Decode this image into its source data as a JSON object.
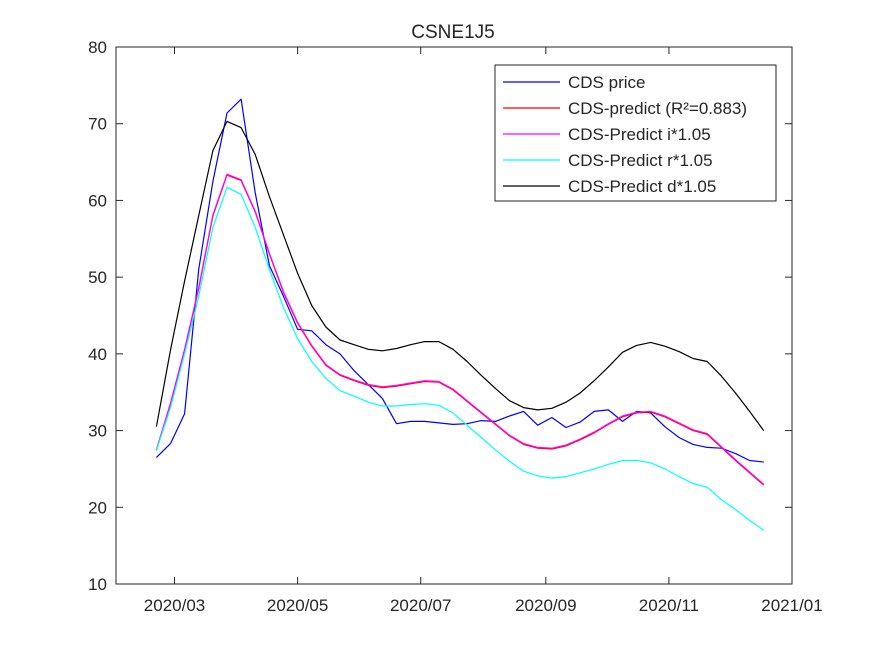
{
  "chart_data": {
    "type": "line",
    "title": "CSNE1J5",
    "xlabel": "",
    "ylabel": "",
    "x_ticks": [
      "2020/03",
      "2020/05",
      "2020/07",
      "2020/09",
      "2020/11",
      "2021/01"
    ],
    "y_ticks": [
      "10",
      "20",
      "30",
      "40",
      "50",
      "60",
      "70",
      "80"
    ],
    "xlim": [
      "2020-02-01",
      "2021-01-01"
    ],
    "ylim": [
      10,
      80
    ],
    "grid": false,
    "legend_position": "top-right",
    "series": [
      {
        "name": "CDS price",
        "color": "#0000ff",
        "points": [
          [
            "2020-02-21",
            26.5
          ],
          [
            "2020-02-28",
            28.3
          ],
          [
            "2020-03-06",
            32.2
          ],
          [
            "2020-03-13",
            51.0
          ],
          [
            "2020-03-20",
            62.5
          ],
          [
            "2020-03-27",
            71.4
          ],
          [
            "2020-04-03",
            73.2
          ],
          [
            "2020-04-10",
            61.0
          ],
          [
            "2020-04-17",
            51.5
          ],
          [
            "2020-04-24",
            47.5
          ],
          [
            "2020-05-01",
            43.2
          ],
          [
            "2020-05-08",
            43.0
          ],
          [
            "2020-05-15",
            41.2
          ],
          [
            "2020-05-22",
            40.0
          ],
          [
            "2020-05-29",
            37.8
          ],
          [
            "2020-06-05",
            36.0
          ],
          [
            "2020-06-12",
            34.2
          ],
          [
            "2020-06-19",
            30.9
          ],
          [
            "2020-06-26",
            31.2
          ],
          [
            "2020-07-03",
            31.2
          ],
          [
            "2020-07-10",
            31.0
          ],
          [
            "2020-07-17",
            30.8
          ],
          [
            "2020-07-24",
            30.9
          ],
          [
            "2020-07-31",
            31.3
          ],
          [
            "2020-08-07",
            31.2
          ],
          [
            "2020-08-14",
            31.9
          ],
          [
            "2020-08-21",
            32.5
          ],
          [
            "2020-08-28",
            30.7
          ],
          [
            "2020-09-04",
            31.7
          ],
          [
            "2020-09-11",
            30.4
          ],
          [
            "2020-09-18",
            31.1
          ],
          [
            "2020-09-25",
            32.5
          ],
          [
            "2020-10-02",
            32.7
          ],
          [
            "2020-10-09",
            31.2
          ],
          [
            "2020-10-16",
            32.5
          ],
          [
            "2020-10-23",
            32.3
          ],
          [
            "2020-10-30",
            30.5
          ],
          [
            "2020-11-06",
            29.1
          ],
          [
            "2020-11-13",
            28.2
          ],
          [
            "2020-11-20",
            27.8
          ],
          [
            "2020-11-27",
            27.7
          ],
          [
            "2020-12-04",
            27.0
          ],
          [
            "2020-12-11",
            26.1
          ],
          [
            "2020-12-18",
            25.9
          ]
        ]
      },
      {
        "name": "CDS-predict (R²=0.883)",
        "color": "#ff0000",
        "points": [
          [
            "2020-02-21",
            27.4
          ],
          [
            "2020-02-28",
            33.5
          ],
          [
            "2020-03-06",
            40.5
          ],
          [
            "2020-03-13",
            48.5
          ],
          [
            "2020-03-20",
            58.0
          ],
          [
            "2020-03-27",
            63.3
          ],
          [
            "2020-04-03",
            62.6
          ],
          [
            "2020-04-10",
            58.5
          ],
          [
            "2020-04-17",
            53.0
          ],
          [
            "2020-04-24",
            48.0
          ],
          [
            "2020-05-01",
            44.0
          ],
          [
            "2020-05-08",
            41.0
          ],
          [
            "2020-05-15",
            38.5
          ],
          [
            "2020-05-22",
            37.2
          ],
          [
            "2020-05-29",
            36.5
          ],
          [
            "2020-06-05",
            35.9
          ],
          [
            "2020-06-12",
            35.6
          ],
          [
            "2020-06-19",
            35.8
          ],
          [
            "2020-06-26",
            36.1
          ],
          [
            "2020-07-03",
            36.4
          ],
          [
            "2020-07-10",
            36.3
          ],
          [
            "2020-07-17",
            35.3
          ],
          [
            "2020-07-24",
            33.8
          ],
          [
            "2020-07-31",
            32.3
          ],
          [
            "2020-08-07",
            30.8
          ],
          [
            "2020-08-14",
            29.3
          ],
          [
            "2020-08-21",
            28.2
          ],
          [
            "2020-08-28",
            27.7
          ],
          [
            "2020-09-04",
            27.6
          ],
          [
            "2020-09-11",
            28.0
          ],
          [
            "2020-09-18",
            28.8
          ],
          [
            "2020-09-25",
            29.7
          ],
          [
            "2020-10-02",
            30.8
          ],
          [
            "2020-10-09",
            31.8
          ],
          [
            "2020-10-16",
            32.3
          ],
          [
            "2020-10-23",
            32.4
          ],
          [
            "2020-10-30",
            31.8
          ],
          [
            "2020-11-06",
            30.9
          ],
          [
            "2020-11-13",
            30.0
          ],
          [
            "2020-11-20",
            29.5
          ],
          [
            "2020-11-27",
            27.8
          ],
          [
            "2020-12-04",
            26.1
          ],
          [
            "2020-12-11",
            24.5
          ],
          [
            "2020-12-18",
            22.9
          ]
        ]
      },
      {
        "name": "CDS-Predict i*1.05",
        "color": "#ff00ff",
        "points": [
          [
            "2020-02-21",
            27.5
          ],
          [
            "2020-02-28",
            33.6
          ],
          [
            "2020-03-06",
            40.6
          ],
          [
            "2020-03-13",
            48.6
          ],
          [
            "2020-03-20",
            58.1
          ],
          [
            "2020-03-27",
            63.4
          ],
          [
            "2020-04-03",
            62.7
          ],
          [
            "2020-04-10",
            58.6
          ],
          [
            "2020-04-17",
            53.1
          ],
          [
            "2020-04-24",
            48.1
          ],
          [
            "2020-05-01",
            44.1
          ],
          [
            "2020-05-08",
            41.1
          ],
          [
            "2020-05-15",
            38.6
          ],
          [
            "2020-05-22",
            37.3
          ],
          [
            "2020-05-29",
            36.6
          ],
          [
            "2020-06-05",
            36.0
          ],
          [
            "2020-06-12",
            35.7
          ],
          [
            "2020-06-19",
            35.9
          ],
          [
            "2020-06-26",
            36.2
          ],
          [
            "2020-07-03",
            36.5
          ],
          [
            "2020-07-10",
            36.4
          ],
          [
            "2020-07-17",
            35.4
          ],
          [
            "2020-07-24",
            33.9
          ],
          [
            "2020-07-31",
            32.4
          ],
          [
            "2020-08-07",
            30.9
          ],
          [
            "2020-08-14",
            29.4
          ],
          [
            "2020-08-21",
            28.3
          ],
          [
            "2020-08-28",
            27.8
          ],
          [
            "2020-09-04",
            27.7
          ],
          [
            "2020-09-11",
            28.1
          ],
          [
            "2020-09-18",
            28.9
          ],
          [
            "2020-09-25",
            29.8
          ],
          [
            "2020-10-02",
            30.9
          ],
          [
            "2020-10-09",
            31.9
          ],
          [
            "2020-10-16",
            32.4
          ],
          [
            "2020-10-23",
            32.5
          ],
          [
            "2020-10-30",
            31.9
          ],
          [
            "2020-11-06",
            31.0
          ],
          [
            "2020-11-13",
            30.1
          ],
          [
            "2020-11-20",
            29.6
          ],
          [
            "2020-11-27",
            27.9
          ],
          [
            "2020-12-04",
            26.2
          ],
          [
            "2020-12-11",
            24.6
          ],
          [
            "2020-12-18",
            23.0
          ]
        ]
      },
      {
        "name": "CDS-Predict r*1.05",
        "color": "#00ffff",
        "points": [
          [
            "2020-02-21",
            27.4
          ],
          [
            "2020-02-28",
            33.0
          ],
          [
            "2020-03-06",
            40.0
          ],
          [
            "2020-03-13",
            47.5
          ],
          [
            "2020-03-20",
            56.5
          ],
          [
            "2020-03-27",
            61.7
          ],
          [
            "2020-04-03",
            60.8
          ],
          [
            "2020-04-10",
            56.5
          ],
          [
            "2020-04-17",
            51.0
          ],
          [
            "2020-04-24",
            46.0
          ],
          [
            "2020-05-01",
            42.0
          ],
          [
            "2020-05-08",
            39.0
          ],
          [
            "2020-05-15",
            36.8
          ],
          [
            "2020-05-22",
            35.2
          ],
          [
            "2020-05-29",
            34.5
          ],
          [
            "2020-06-05",
            33.7
          ],
          [
            "2020-06-12",
            33.2
          ],
          [
            "2020-06-19",
            33.2
          ],
          [
            "2020-06-26",
            33.4
          ],
          [
            "2020-07-03",
            33.5
          ],
          [
            "2020-07-10",
            33.3
          ],
          [
            "2020-07-17",
            32.3
          ],
          [
            "2020-07-24",
            30.7
          ],
          [
            "2020-07-31",
            29.1
          ],
          [
            "2020-08-07",
            27.5
          ],
          [
            "2020-08-14",
            26.0
          ],
          [
            "2020-08-21",
            24.7
          ],
          [
            "2020-08-28",
            24.1
          ],
          [
            "2020-09-04",
            23.8
          ],
          [
            "2020-09-11",
            24.0
          ],
          [
            "2020-09-18",
            24.5
          ],
          [
            "2020-09-25",
            25.0
          ],
          [
            "2020-10-02",
            25.6
          ],
          [
            "2020-10-09",
            26.1
          ],
          [
            "2020-10-16",
            26.1
          ],
          [
            "2020-10-23",
            25.8
          ],
          [
            "2020-10-30",
            25.0
          ],
          [
            "2020-11-06",
            24.0
          ],
          [
            "2020-11-13",
            23.1
          ],
          [
            "2020-11-20",
            22.6
          ],
          [
            "2020-11-27",
            21.0
          ],
          [
            "2020-12-04",
            19.7
          ],
          [
            "2020-12-11",
            18.3
          ],
          [
            "2020-12-18",
            17.0
          ]
        ]
      },
      {
        "name": "CDS-Predict d*1.05",
        "color": "#000000",
        "points": [
          [
            "2020-02-21",
            30.5
          ],
          [
            "2020-02-28",
            40.5
          ],
          [
            "2020-03-06",
            49.5
          ],
          [
            "2020-03-13",
            58.0
          ],
          [
            "2020-03-20",
            66.5
          ],
          [
            "2020-03-27",
            70.3
          ],
          [
            "2020-04-03",
            69.5
          ],
          [
            "2020-04-10",
            66.0
          ],
          [
            "2020-04-17",
            60.5
          ],
          [
            "2020-04-24",
            55.5
          ],
          [
            "2020-05-01",
            50.5
          ],
          [
            "2020-05-08",
            46.3
          ],
          [
            "2020-05-15",
            43.5
          ],
          [
            "2020-05-22",
            41.8
          ],
          [
            "2020-05-29",
            41.2
          ],
          [
            "2020-06-05",
            40.6
          ],
          [
            "2020-06-12",
            40.4
          ],
          [
            "2020-06-19",
            40.7
          ],
          [
            "2020-06-26",
            41.2
          ],
          [
            "2020-07-03",
            41.6
          ],
          [
            "2020-07-10",
            41.6
          ],
          [
            "2020-07-17",
            40.6
          ],
          [
            "2020-07-24",
            39.0
          ],
          [
            "2020-07-31",
            37.2
          ],
          [
            "2020-08-07",
            35.5
          ],
          [
            "2020-08-14",
            33.9
          ],
          [
            "2020-08-21",
            33.0
          ],
          [
            "2020-08-28",
            32.7
          ],
          [
            "2020-09-04",
            32.9
          ],
          [
            "2020-09-11",
            33.7
          ],
          [
            "2020-09-18",
            34.9
          ],
          [
            "2020-09-25",
            36.5
          ],
          [
            "2020-10-02",
            38.3
          ],
          [
            "2020-10-09",
            40.2
          ],
          [
            "2020-10-16",
            41.1
          ],
          [
            "2020-10-23",
            41.5
          ],
          [
            "2020-10-30",
            41.0
          ],
          [
            "2020-11-06",
            40.3
          ],
          [
            "2020-11-13",
            39.4
          ],
          [
            "2020-11-20",
            39.0
          ],
          [
            "2020-11-27",
            37.1
          ],
          [
            "2020-12-04",
            34.9
          ],
          [
            "2020-12-11",
            32.5
          ],
          [
            "2020-12-18",
            30.0
          ]
        ]
      }
    ]
  }
}
